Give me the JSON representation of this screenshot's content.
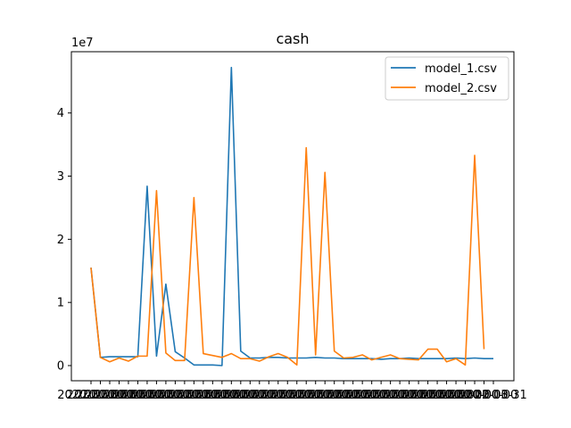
{
  "chart_data": {
    "type": "line",
    "title": "cash",
    "xlabel": "",
    "ylabel": "",
    "y_scale_label": "1e7",
    "ylim": [
      -2400000,
      49700000
    ],
    "y_ticks": [
      0,
      10000000,
      20000000,
      30000000,
      40000000
    ],
    "y_tick_labels": [
      "0",
      "1",
      "2",
      "3",
      "4"
    ],
    "x_tick_labels_note": "overlapping date labels; only the final label is distinguishable",
    "x_last_tick_label": "2022-03-31",
    "legend_position": "top-right",
    "colors": {
      "model_1": "#1f77b4",
      "model_2": "#ff7f0e"
    },
    "series": [
      {
        "name": "model_1.csv",
        "color": "#1f77b4",
        "values": [
          15500000,
          1300000,
          1400000,
          1400000,
          1400000,
          1400000,
          28400000,
          1500000,
          12900000,
          2200000,
          1200000,
          100000,
          100000,
          100000,
          0,
          47200000,
          2300000,
          1200000,
          1200000,
          1300000,
          1300000,
          1200000,
          1200000,
          1200000,
          1300000,
          1200000,
          1200000,
          1100000,
          1100000,
          1100000,
          1100000,
          1000000,
          1100000,
          1100000,
          1200000,
          1100000,
          1100000,
          1100000,
          1100000,
          1200000,
          1100000,
          1200000,
          1100000,
          1100000
        ]
      },
      {
        "name": "model_2.csv",
        "color": "#ff7f0e",
        "values": [
          15500000,
          1300000,
          600000,
          1200000,
          700000,
          1500000,
          1500000,
          27700000,
          2000000,
          800000,
          800000,
          26600000,
          1900000,
          1600000,
          1300000,
          1900000,
          1100000,
          1100000,
          700000,
          1400000,
          1900000,
          1300000,
          100000,
          34500000,
          1700000,
          30600000,
          2300000,
          1200000,
          1300000,
          1700000,
          900000,
          1300000,
          1700000,
          1100000,
          1000000,
          900000,
          2600000,
          2600000,
          600000,
          1100000,
          100000,
          33300000,
          2600000
        ]
      }
    ]
  }
}
